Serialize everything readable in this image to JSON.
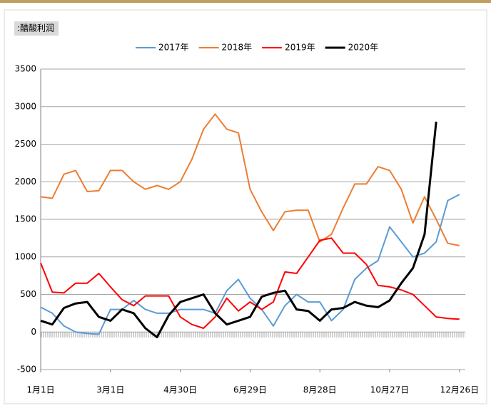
{
  "chart_data": {
    "type": "line",
    "title": ":醋酸利润",
    "x": [
      0,
      10,
      20,
      30,
      40,
      50,
      60,
      70,
      80,
      90,
      100,
      110,
      120,
      130,
      140,
      150,
      160,
      170,
      180,
      190,
      200,
      210,
      220,
      230,
      240,
      250,
      260,
      270,
      280,
      290,
      300,
      310,
      320,
      330,
      340,
      350,
      360
    ],
    "xlim": [
      0,
      365
    ],
    "xticks": [
      {
        "value": 0,
        "label": "1月1日"
      },
      {
        "value": 60,
        "label": "3月1日"
      },
      {
        "value": 120,
        "label": "4月30日"
      },
      {
        "value": 180,
        "label": "6月29日"
      },
      {
        "value": 240,
        "label": "8月28日"
      },
      {
        "value": 300,
        "label": "10月27日"
      },
      {
        "value": 360,
        "label": "12月26日"
      }
    ],
    "ylim": [
      -500,
      3500
    ],
    "yticks": [
      -500,
      0,
      500,
      1000,
      1500,
      2000,
      2500,
      3000,
      3500
    ],
    "grid": true,
    "legend": "top",
    "series": [
      {
        "name": "2017年",
        "color": "#5b9bd5",
        "width": 2,
        "values": [
          330,
          250,
          80,
          0,
          -20,
          -30,
          300,
          300,
          420,
          300,
          250,
          250,
          300,
          300,
          300,
          250,
          550,
          700,
          450,
          300,
          80,
          350,
          500,
          400,
          400,
          150,
          300,
          700,
          850,
          950,
          1400,
          1200,
          1000,
          1050,
          1200,
          1750,
          1830
        ]
      },
      {
        "name": "2018年",
        "color": "#ed7d31",
        "width": 2,
        "values": [
          1800,
          1780,
          2100,
          2150,
          1870,
          1880,
          2150,
          2150,
          2000,
          1900,
          1950,
          1900,
          2000,
          2300,
          2700,
          2900,
          2700,
          2650,
          1900,
          1600,
          1350,
          1600,
          1620,
          1620,
          1200,
          1300,
          1650,
          1970,
          1970,
          2200,
          2150,
          1900,
          1450,
          1800,
          1500,
          1180,
          1150
        ]
      },
      {
        "name": "2019年",
        "color": "#ff0000",
        "width": 2,
        "values": [
          920,
          530,
          520,
          650,
          650,
          780,
          600,
          430,
          350,
          480,
          480,
          480,
          200,
          100,
          50,
          200,
          450,
          280,
          400,
          300,
          400,
          800,
          780,
          1000,
          1220,
          1250,
          1050,
          1050,
          900,
          620,
          600,
          560,
          500,
          350,
          200,
          180,
          170
        ]
      },
      {
        "name": "2020年",
        "color": "#000000",
        "width": 3,
        "values": [
          150,
          100,
          320,
          380,
          400,
          200,
          150,
          300,
          250,
          50,
          -70,
          220,
          400,
          450,
          500,
          250,
          100,
          150,
          200,
          470,
          520,
          550,
          300,
          280,
          150,
          300,
          320,
          400,
          350,
          330,
          420,
          650,
          850,
          1300,
          2800,
          null,
          null
        ]
      }
    ]
  }
}
